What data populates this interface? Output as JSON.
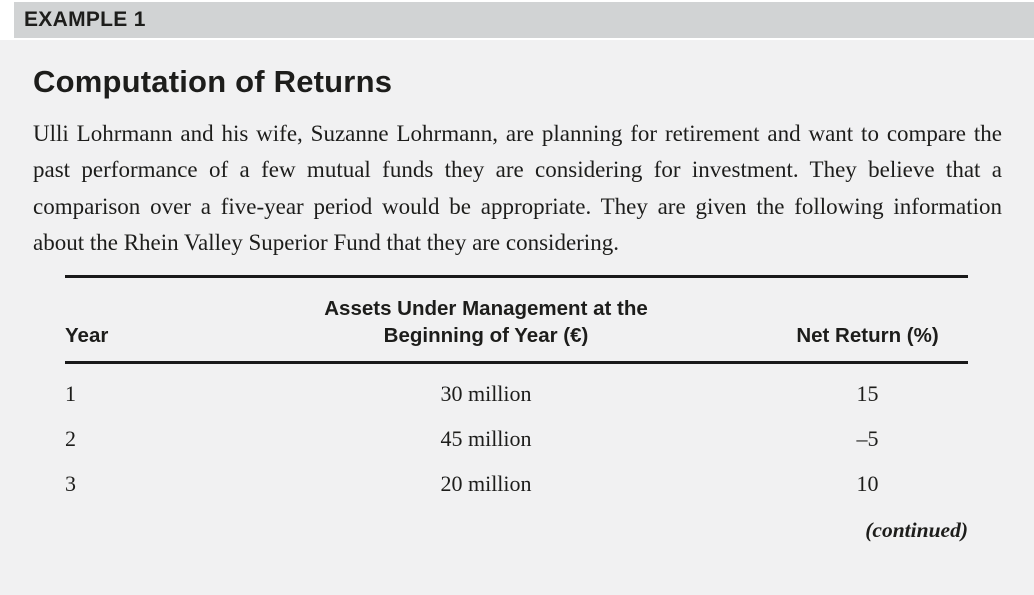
{
  "example_header": {
    "label": "EXAMPLE 1"
  },
  "body": {
    "title": "Computation of Returns",
    "paragraph": "Ulli Lohrmann and his wife, Suzanne Lohrmann, are planning for retirement and want to compare the past performance of a few mutual funds they are considering for investment. They believe that a comparison over a five-year period would be appropriate. They are given the following information about the Rhein Valley Superior Fund that they are considering.",
    "continued_note": "(continued)"
  },
  "table": {
    "headers": {
      "year": "Year",
      "aum_line1": "Assets Under Management at the",
      "aum_line2": "Beginning of Year (€)",
      "net_return": "Net Return (%)"
    },
    "rows": [
      {
        "year": "1",
        "aum": "30 million",
        "net_return": "15"
      },
      {
        "year": "2",
        "aum": "45 million",
        "net_return": "–5"
      },
      {
        "year": "3",
        "aum": "20 million",
        "net_return": "10"
      }
    ]
  },
  "colors": {
    "header_bar": "#d1d3d4",
    "content_background": "#f1f1f2",
    "text": "#1d1d1b",
    "rule": "#1a1a1a"
  }
}
